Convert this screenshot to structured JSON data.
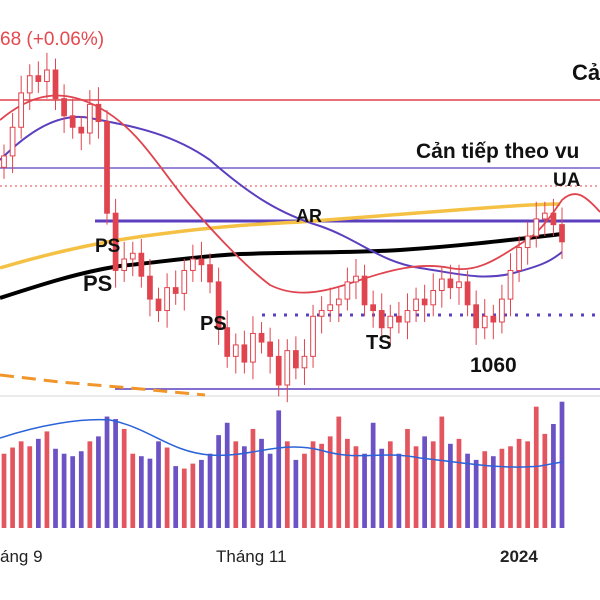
{
  "header": {
    "change_text": "68 (+0.06%)",
    "change_color": "#e5484d"
  },
  "colors": {
    "up_candle": "#e0444e",
    "down_candle": "#e0444e",
    "volume_up": "#e0444e",
    "volume_down": "#5b3fbf",
    "ma_short": "#e0444e",
    "ma_medium": "#5b3fbf",
    "ma_long_yellow": "#f5c144",
    "ma_long_black": "#000000",
    "volume_ma": "#2b63d9",
    "support_resistance": "#e0444e",
    "purple_lines": "#5b3fbf",
    "dashed_orange": "#f0962a"
  },
  "chart_data": {
    "type": "candlestick",
    "annotations": [
      {
        "text": "Cả",
        "role": "resistance-label-top"
      },
      {
        "text": "Cản tiếp theo vu",
        "role": "resistance-label-next"
      },
      {
        "text": "UA"
      },
      {
        "text": "AR"
      },
      {
        "text": "PS",
        "role": "ps-1"
      },
      {
        "text": "PS",
        "role": "ps-2"
      },
      {
        "text": "PS",
        "role": "ps-3"
      },
      {
        "text": "TS"
      },
      {
        "text": "1060",
        "role": "support-level"
      }
    ],
    "x_tick_labels": [
      "áng 9",
      "Tháng 11",
      "2024"
    ],
    "price_series_approx": [
      1140,
      1150,
      1162,
      1168,
      1166,
      1170,
      1160,
      1154,
      1150,
      1148,
      1158,
      1152,
      1120,
      1100,
      1104,
      1106,
      1098,
      1090,
      1086,
      1094,
      1092,
      1100,
      1104,
      1102,
      1096,
      1080,
      1070,
      1074,
      1068,
      1078,
      1075,
      1070,
      1060,
      1072,
      1066,
      1070,
      1084,
      1086,
      1088,
      1090,
      1096,
      1098,
      1088,
      1086,
      1080,
      1084,
      1082,
      1086,
      1090,
      1088,
      1093,
      1097,
      1094,
      1096,
      1088,
      1080,
      1084,
      1082,
      1090,
      1100,
      1108,
      1112,
      1118,
      1120,
      1116,
      1110
    ],
    "volume_series_approx": [
      60,
      65,
      70,
      66,
      72,
      78,
      64,
      60,
      58,
      62,
      70,
      74,
      90,
      88,
      80,
      60,
      58,
      56,
      70,
      65,
      50,
      48,
      52,
      55,
      60,
      75,
      85,
      70,
      66,
      80,
      72,
      60,
      95,
      70,
      55,
      60,
      70,
      68,
      74,
      90,
      72,
      66,
      60,
      85,
      64,
      70,
      60,
      80,
      66,
      74,
      70,
      90,
      68,
      72,
      60,
      55,
      62,
      58,
      64,
      66,
      72,
      70,
      98,
      76,
      84,
      102
    ]
  }
}
